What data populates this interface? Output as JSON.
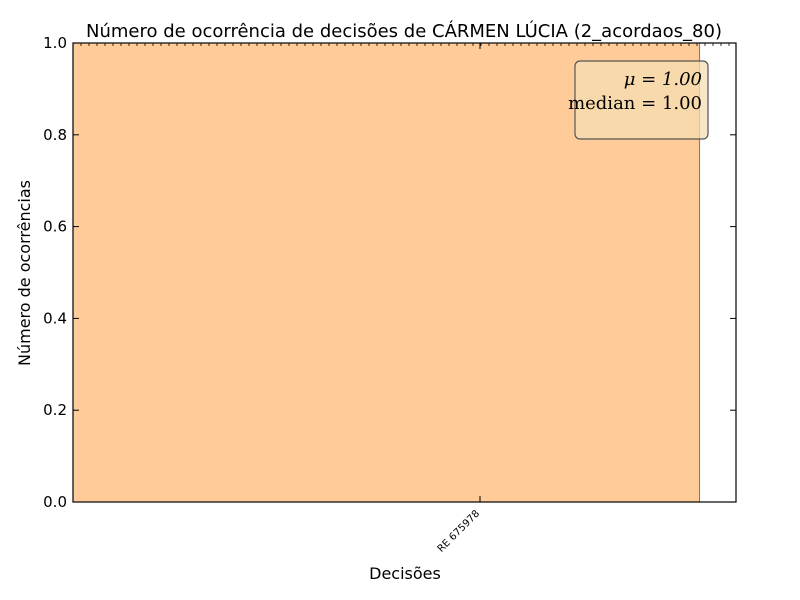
{
  "chart_data": {
    "type": "bar",
    "title": "Número de ocorrência de decisões de CÁRMEN LÚCIA (2_acordaos_80)",
    "xlabel": "Decisões",
    "ylabel": "Número de ocorrências",
    "categories": [
      "RE 675978"
    ],
    "values": [
      1
    ],
    "ylim": [
      0,
      1.0
    ],
    "yticks": [
      "0.0",
      "0.2",
      "0.4",
      "0.6",
      "0.8",
      "1.0"
    ],
    "bar_color": "#ffcc99",
    "stats": {
      "mean_label": "μ = 1.00",
      "median_label": "median = 1.00"
    },
    "stats_box_color": "#f5deb3",
    "legend": "top-right",
    "grid": false
  }
}
